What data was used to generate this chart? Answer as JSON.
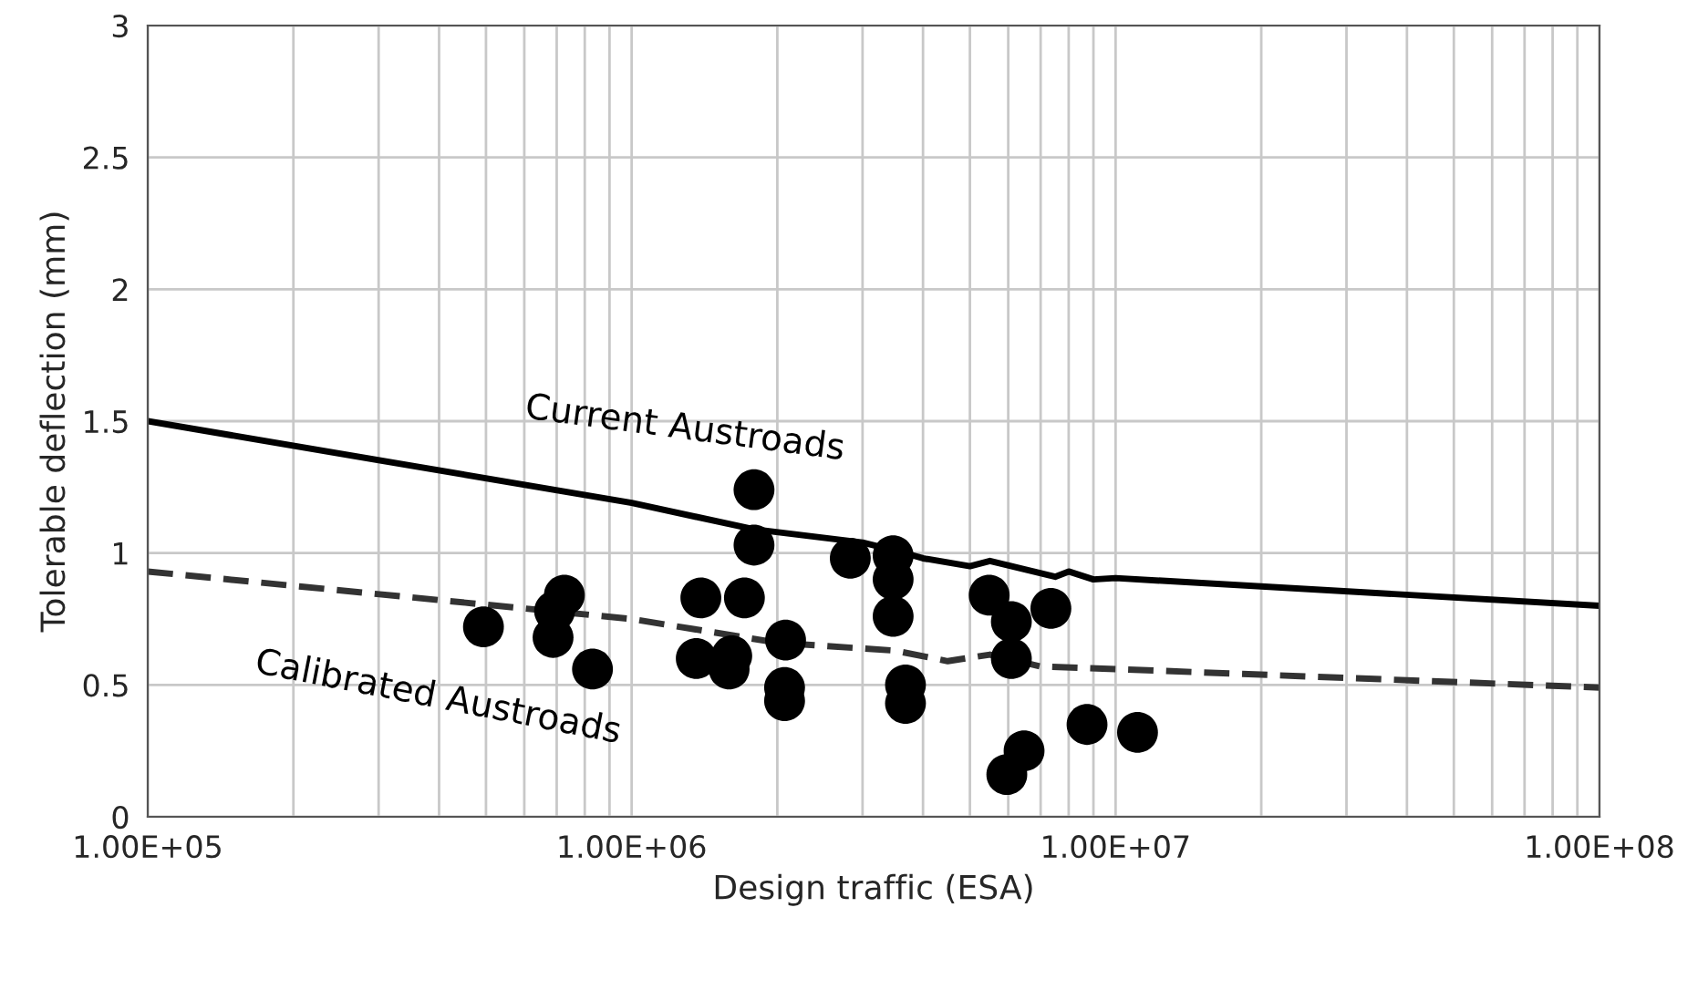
{
  "chart_data": {
    "type": "scatter",
    "xlabel": "Design traffic (ESA)",
    "ylabel": "Tolerable deflection (mm)",
    "log": "x",
    "xlim": [
      100000,
      100000000
    ],
    "ylim": [
      0,
      3
    ],
    "xticks": [
      {
        "value": 100000,
        "label": "1.00E+05"
      },
      {
        "value": 1000000,
        "label": "1.00E+06"
      },
      {
        "value": 10000000,
        "label": "1.00E+07"
      },
      {
        "value": 100000000,
        "label": "1.00E+08"
      }
    ],
    "yticks": [
      0,
      {
        "value": 0.5,
        "label": "0.5"
      },
      1,
      {
        "value": 1.5,
        "label": "1.5"
      },
      2,
      {
        "value": 2.5,
        "label": "2.5"
      },
      3
    ],
    "grid": true,
    "legend": false,
    "series": [
      {
        "type": "line",
        "name": "Current Austroads",
        "color": "#000000",
        "line_style": "solid",
        "marker": "none",
        "x": [
          100000,
          1000000,
          1790000,
          3000000,
          3500000,
          4000000,
          5000000,
          5500000,
          7500000,
          8000000,
          9000000,
          10000000,
          100000000
        ],
        "values": [
          1.5,
          1.19,
          1.09,
          1.04,
          1.01,
          0.98,
          0.95,
          0.97,
          0.91,
          0.93,
          0.9,
          0.905,
          0.8
        ]
      },
      {
        "type": "line",
        "name": "Calibrated Austroads",
        "color": "#333333",
        "line_style": "dashed",
        "marker": "none",
        "x": [
          100000,
          1000000,
          2000000,
          3500000,
          4500000,
          5500000,
          7000000,
          10000000,
          100000000
        ],
        "values": [
          0.93,
          0.75,
          0.66,
          0.63,
          0.59,
          0.615,
          0.57,
          0.56,
          0.49
        ]
      },
      {
        "color": "#000000",
        "marker": "circle",
        "x": [
          494000,
          726000,
          693000,
          688000,
          830000,
          1390000,
          1360000,
          1610000,
          1590000,
          1710000,
          1790000,
          1790000,
          2080000,
          2070000,
          2070000,
          2830000,
          3470000,
          3470000,
          3470000,
          3680000,
          3680000,
          5480000,
          6090000,
          6090000,
          7350000,
          6470000,
          5960000,
          8730000,
          11100000
        ],
        "values": [
          0.72,
          0.84,
          0.78,
          0.68,
          0.56,
          0.83,
          0.6,
          0.61,
          0.56,
          0.83,
          1.24,
          1.03,
          0.67,
          0.49,
          0.44,
          0.98,
          0.99,
          0.9,
          0.76,
          0.5,
          0.43,
          0.84,
          0.74,
          0.6,
          0.79,
          0.25,
          0.16,
          0.35,
          0.32
        ]
      }
    ]
  }
}
